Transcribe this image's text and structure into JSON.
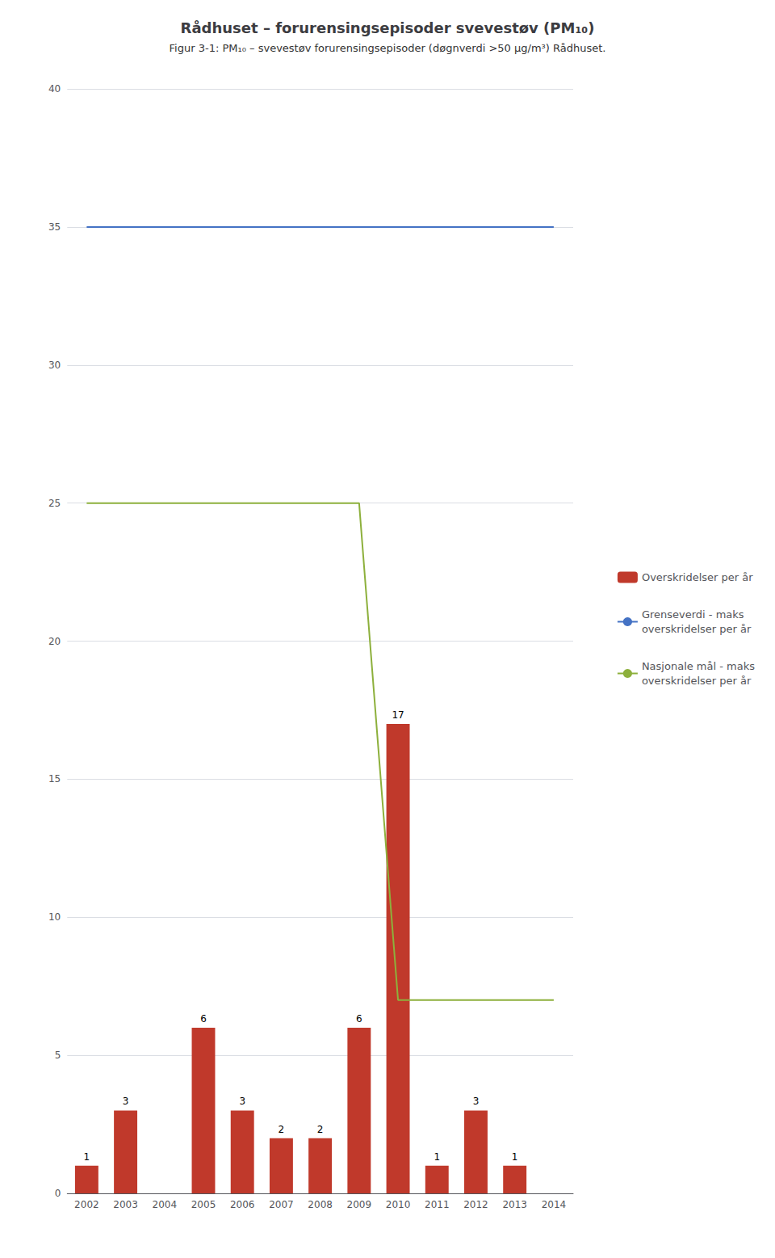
{
  "chart_data": {
    "type": "bar",
    "title": "Rådhuset – forurensingsepisoder svevestøv (PM₁₀)",
    "subtitle": "Figur 3-1: PM₁₀ – svevestøv forurensingsepisoder (døgnverdi >50 µg/m³) Rådhuset.",
    "categories": [
      "2002",
      "2003",
      "2004",
      "2005",
      "2006",
      "2007",
      "2008",
      "2009",
      "2010",
      "2011",
      "2012",
      "2013",
      "2014"
    ],
    "series": [
      {
        "name": "Overskridelser per år",
        "type": "bar",
        "color": "#c0392b",
        "values": [
          1,
          3,
          0,
          6,
          3,
          2,
          2,
          6,
          17,
          1,
          3,
          1,
          0
        ],
        "data_labels": true,
        "value_labels": [
          "1",
          "3",
          null,
          "6",
          "3",
          "2",
          "2",
          "6",
          "17",
          "1",
          "3",
          "1",
          null
        ]
      },
      {
        "name": "Grenseverdi - maks\noverskridelser per år",
        "type": "line",
        "color": "#4472c4",
        "values": [
          35,
          35,
          35,
          35,
          35,
          35,
          35,
          35,
          35,
          35,
          35,
          35,
          35
        ]
      },
      {
        "name": "Nasjonale mål - maks\noverskridelser per år",
        "type": "line",
        "color": "#8db03c",
        "values": [
          25,
          25,
          25,
          25,
          25,
          25,
          25,
          25,
          7,
          7,
          7,
          7,
          7
        ]
      }
    ],
    "ylim": [
      0,
      40
    ],
    "yticks": [
      0,
      5,
      10,
      15,
      20,
      25,
      30,
      35,
      40
    ],
    "grid": true,
    "legend": "right"
  }
}
